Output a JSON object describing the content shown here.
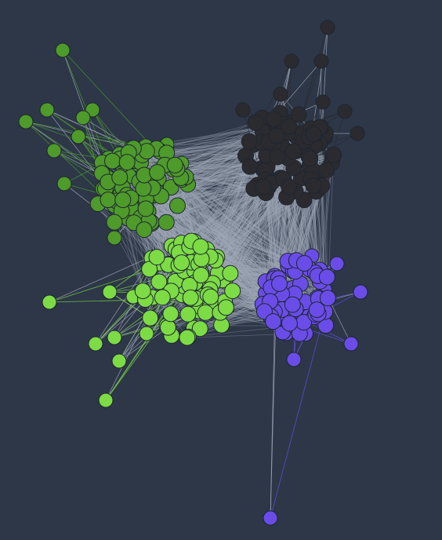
{
  "background": "#2d3748",
  "edge_color": "#a0a9b8",
  "node_outline": "#1e2530",
  "clusters": [
    {
      "id": "dark-cluster",
      "color": "#2b2b2f",
      "node_count": 80
    },
    {
      "id": "olive-cluster",
      "color": "#4e9a2a",
      "node_count": 75
    },
    {
      "id": "lime-cluster",
      "color": "#7ddb45",
      "node_count": 85
    },
    {
      "id": "purple-cluster",
      "color": "#6a4de8",
      "node_count": 70
    }
  ],
  "outlier_nodes": 28
}
